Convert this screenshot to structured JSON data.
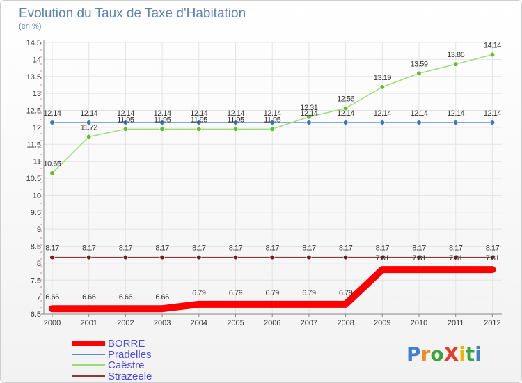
{
  "header": {
    "title": "Evolution du Taux de Taxe d'Habitation",
    "subtitle": "(en %)"
  },
  "logo": {
    "text": "ProXiti",
    "letters": [
      "P",
      "r",
      "o",
      "X",
      "i",
      "t",
      "i"
    ]
  },
  "chart_data": {
    "type": "line",
    "title": "Evolution du Taux de Taxe d'Habitation",
    "subtitle": "(en %)",
    "xlabel": "",
    "ylabel": "",
    "x": [
      "2000",
      "2001",
      "2002",
      "2003",
      "2004",
      "2005",
      "2006",
      "2007",
      "2008",
      "2009",
      "2010",
      "2011",
      "2012"
    ],
    "ylim": [
      6.5,
      14.5
    ],
    "yticks": [
      6.5,
      7,
      7.5,
      8,
      8.5,
      9,
      9.5,
      10,
      10.5,
      11,
      11.5,
      12,
      12.5,
      13,
      13.5,
      14,
      14.5
    ],
    "ytick_labels": [
      "6.5",
      "7",
      "7.5",
      "8",
      "8.5",
      "9",
      "9.5",
      "10",
      "10.5",
      "11",
      "11.5",
      "12",
      "12.5",
      "13",
      "13.5",
      "14",
      "14.5"
    ],
    "legend_position": "bottom-left",
    "series": [
      {
        "name": "BORRE",
        "color": "#ff0000",
        "values": [
          6.66,
          6.66,
          6.66,
          6.66,
          6.79,
          6.79,
          6.79,
          6.79,
          6.79,
          7.81,
          7.81,
          7.81,
          7.81
        ],
        "labels": [
          "6.66",
          "6.66",
          "6.66",
          "6.66",
          "6.79",
          "6.79",
          "6.79",
          "6.79",
          "6.79",
          "7.81",
          "7.81",
          "7.81",
          "7.81"
        ]
      },
      {
        "name": "Pradelles",
        "color": "#5b8fc7",
        "marker_color": "#3a78b8",
        "values": [
          12.14,
          12.14,
          12.14,
          12.14,
          12.14,
          12.14,
          12.14,
          12.14,
          12.14,
          12.14,
          12.14,
          12.14,
          12.14
        ],
        "labels": [
          "12.14",
          "12.14",
          "12.14",
          "12.14",
          "12.14",
          "12.14",
          "12.14",
          "12.14",
          "12.14",
          "12.14",
          "12.14",
          "12.14",
          "12.14"
        ]
      },
      {
        "name": "Caëstre",
        "color": "#99dd77",
        "marker_color": "#66bb33",
        "values": [
          10.65,
          11.72,
          11.95,
          11.95,
          11.95,
          11.95,
          11.95,
          12.31,
          12.56,
          13.19,
          13.59,
          13.86,
          14.14
        ],
        "labels": [
          "10.65",
          "11.72",
          "11.95",
          "11.95",
          "11.95",
          "11.95",
          "11.95",
          "12.31",
          "12.56",
          "13.19",
          "13.59",
          "13.86",
          "14.14"
        ]
      },
      {
        "name": "Strazeele",
        "color": "#8b3a3a",
        "marker_color": "#6e1f1f",
        "values": [
          8.17,
          8.17,
          8.17,
          8.17,
          8.17,
          8.17,
          8.17,
          8.17,
          8.17,
          8.17,
          8.17,
          8.17,
          8.17
        ],
        "labels": [
          "8.17",
          "8.17",
          "8.17",
          "8.17",
          "8.17",
          "8.17",
          "8.17",
          "8.17",
          "8.17",
          "8.17",
          "8.17",
          "8.17",
          "8.17"
        ]
      }
    ]
  }
}
